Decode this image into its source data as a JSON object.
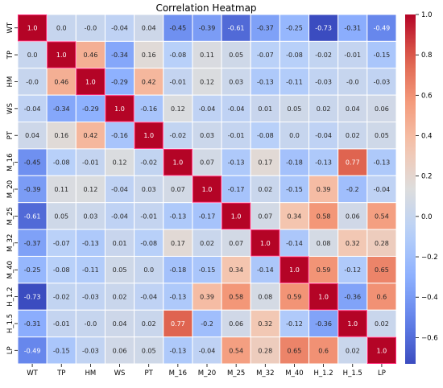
{
  "chart_data": {
    "type": "heatmap",
    "title": "Correlation Heatmap",
    "xlabel": "",
    "ylabel": "",
    "x_labels": [
      "WT",
      "TP",
      "HM",
      "WS",
      "PT",
      "M_16",
      "M_20",
      "M_25",
      "M_32",
      "M_40",
      "H_1.2",
      "H_1.5",
      "LP"
    ],
    "y_labels": [
      "WT",
      "TP",
      "HM",
      "WS",
      "PT",
      "M_16",
      "M_20",
      "M_25",
      "M_32",
      "M_40",
      "H_1.2",
      "H_1.5",
      "LP"
    ],
    "cell_labels": [
      [
        "1.0",
        "0.0",
        "-0.0",
        "-0.04",
        "0.04",
        "-0.45",
        "-0.39",
        "-0.61",
        "-0.37",
        "-0.25",
        "-0.73",
        "-0.31",
        "-0.49"
      ],
      [
        "0.0",
        "1.0",
        "0.46",
        "-0.34",
        "0.16",
        "-0.08",
        "0.11",
        "0.05",
        "-0.07",
        "-0.08",
        "-0.02",
        "-0.01",
        "-0.15"
      ],
      [
        "-0.0",
        "0.46",
        "1.0",
        "-0.29",
        "0.42",
        "-0.01",
        "0.12",
        "0.03",
        "-0.13",
        "-0.11",
        "-0.03",
        "-0.0",
        "-0.03"
      ],
      [
        "-0.04",
        "-0.34",
        "-0.29",
        "1.0",
        "-0.16",
        "0.12",
        "-0.04",
        "-0.04",
        "0.01",
        "0.05",
        "0.02",
        "0.04",
        "0.06"
      ],
      [
        "0.04",
        "0.16",
        "0.42",
        "-0.16",
        "1.0",
        "-0.02",
        "0.03",
        "-0.01",
        "-0.08",
        "0.0",
        "-0.04",
        "0.02",
        "0.05"
      ],
      [
        "-0.45",
        "-0.08",
        "-0.01",
        "0.12",
        "-0.02",
        "1.0",
        "0.07",
        "-0.13",
        "0.17",
        "-0.18",
        "-0.13",
        "0.77",
        "-0.13"
      ],
      [
        "-0.39",
        "0.11",
        "0.12",
        "-0.04",
        "0.03",
        "0.07",
        "1.0",
        "-0.17",
        "0.02",
        "-0.15",
        "0.39",
        "-0.2",
        "-0.04"
      ],
      [
        "-0.61",
        "0.05",
        "0.03",
        "-0.04",
        "-0.01",
        "-0.13",
        "-0.17",
        "1.0",
        "0.07",
        "0.34",
        "0.58",
        "0.06",
        "0.54"
      ],
      [
        "-0.37",
        "-0.07",
        "-0.13",
        "0.01",
        "-0.08",
        "0.17",
        "0.02",
        "0.07",
        "1.0",
        "-0.14",
        "0.08",
        "0.32",
        "0.28"
      ],
      [
        "-0.25",
        "-0.08",
        "-0.11",
        "0.05",
        "0.0",
        "-0.18",
        "-0.15",
        "0.34",
        "-0.14",
        "1.0",
        "0.59",
        "-0.12",
        "0.65"
      ],
      [
        "-0.73",
        "-0.02",
        "-0.03",
        "0.02",
        "-0.04",
        "-0.13",
        "0.39",
        "0.58",
        "0.08",
        "0.59",
        "1.0",
        "-0.36",
        "0.6"
      ],
      [
        "-0.31",
        "-0.01",
        "-0.0",
        "0.04",
        "0.02",
        "0.77",
        "-0.2",
        "0.06",
        "0.32",
        "-0.12",
        "-0.36",
        "1.0",
        "0.02"
      ],
      [
        "-0.49",
        "-0.15",
        "-0.03",
        "0.06",
        "0.05",
        "-0.13",
        "-0.04",
        "0.54",
        "0.28",
        "0.65",
        "0.6",
        "0.02",
        "1.0"
      ]
    ],
    "colorbar": {
      "colormap": "coolwarm",
      "range": [
        -0.73,
        1.0
      ],
      "ticks": [
        "1.0",
        "0.8",
        "0.6",
        "0.4",
        "0.2",
        "0.0",
        "−0.2",
        "−0.4",
        "−0.6"
      ]
    },
    "colors": {
      "grid_lines": "#ffffff",
      "highlight_border": "#ff2d7a"
    }
  }
}
